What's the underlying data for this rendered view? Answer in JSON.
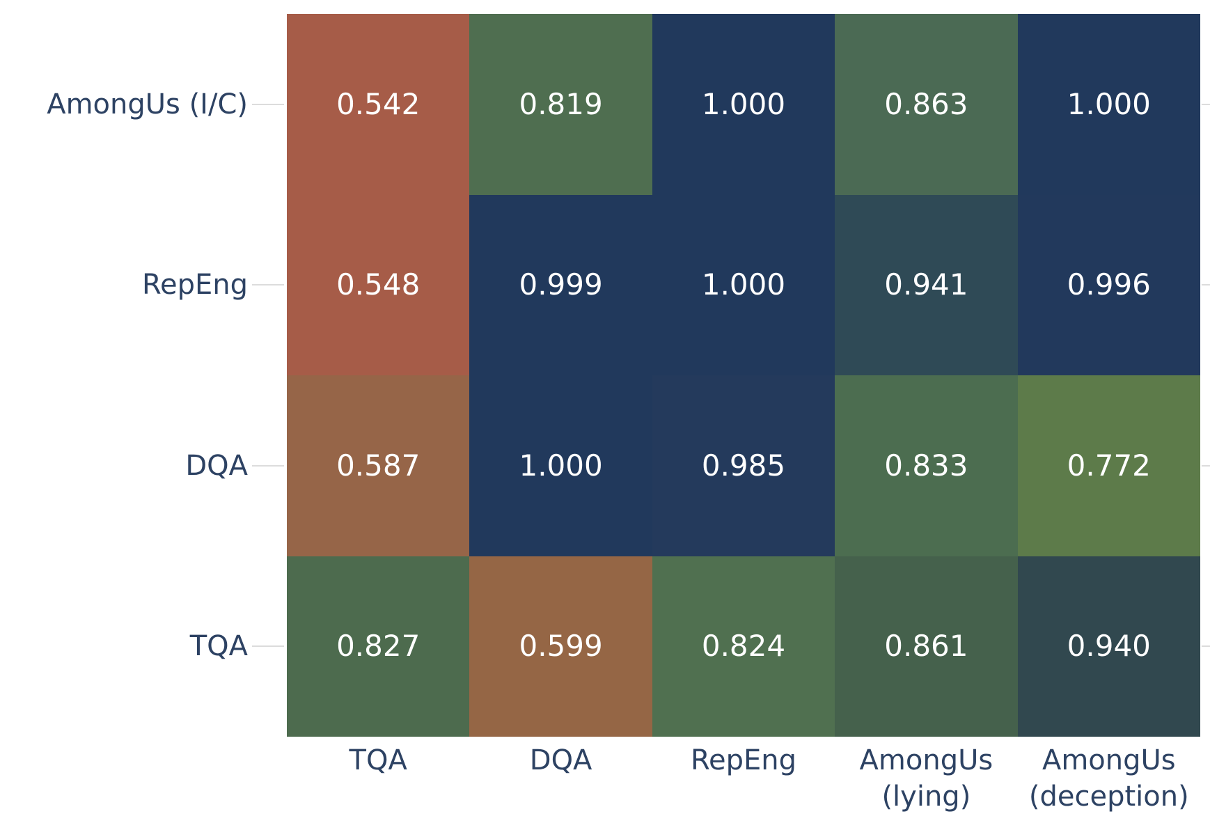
{
  "chart_data": {
    "type": "heatmap",
    "title": "",
    "xlabel": "",
    "ylabel": "",
    "rows": [
      "AmongUs (I/C)",
      "RepEng",
      "DQA",
      "TQA"
    ],
    "columns": [
      [
        "TQA"
      ],
      [
        "DQA"
      ],
      [
        "RepEng"
      ],
      [
        "AmongUs",
        "(lying)"
      ],
      [
        "AmongUs",
        "(deception)"
      ]
    ],
    "values": [
      [
        0.542,
        0.819,
        1.0,
        0.863,
        1.0
      ],
      [
        0.548,
        0.999,
        1.0,
        0.941,
        0.996
      ],
      [
        0.587,
        1.0,
        0.985,
        0.833,
        0.772
      ],
      [
        0.827,
        0.599,
        0.824,
        0.861,
        0.94
      ]
    ],
    "value_decimals": 3,
    "cell_colors": [
      [
        "#a65c48",
        "#4f6e50",
        "#21395c",
        "#4b6a54",
        "#21395c"
      ],
      [
        "#a65c48",
        "#21395c",
        "#21395c",
        "#2f4a56",
        "#22395c"
      ],
      [
        "#966548",
        "#21395c",
        "#243a5c",
        "#4c6d50",
        "#5d7b4a"
      ],
      [
        "#4d6b4e",
        "#956645",
        "#507050",
        "#45614c",
        "#31484f"
      ]
    ],
    "layout_hints": {
      "grid": "off",
      "legend": "none",
      "annotations": "values shown in each cell",
      "row_axis_side": "left",
      "col_axis_side": "bottom"
    },
    "colors": {
      "background": "#ffffff",
      "axis_label": "#2d4263",
      "cell_text": "#ffffff",
      "tick_line": "#dcdcdc"
    }
  }
}
